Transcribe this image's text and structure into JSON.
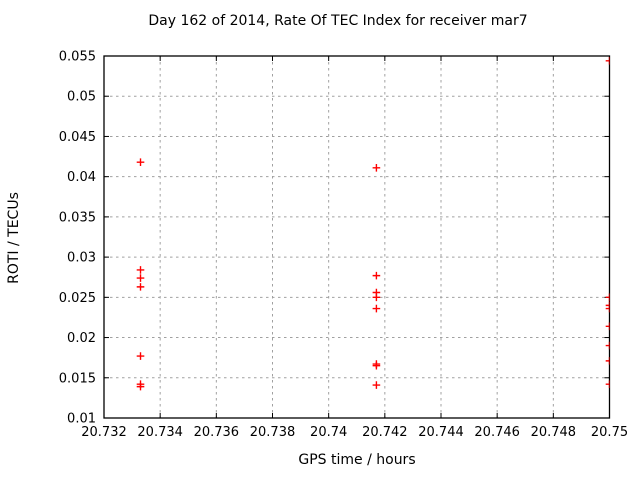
{
  "chart_data": {
    "type": "scatter",
    "title": "Day 162 of 2014, Rate Of TEC Index for receiver mar7",
    "xlabel": "GPS time / hours",
    "ylabel": "ROTI / TECUs",
    "xlim": [
      20.732,
      20.75
    ],
    "ylim": [
      0.01,
      0.055
    ],
    "xtick_values": [
      20.732,
      20.734,
      20.736,
      20.738,
      20.74,
      20.742,
      20.744,
      20.746,
      20.748,
      20.75
    ],
    "xtick_labels": [
      "20.732",
      "20.734",
      "20.736",
      "20.738",
      "20.74",
      "20.742",
      "20.744",
      "20.746",
      "20.748",
      "20.75"
    ],
    "ytick_values": [
      0.01,
      0.015,
      0.02,
      0.025,
      0.03,
      0.035,
      0.04,
      0.045,
      0.05,
      0.055
    ],
    "ytick_labels": [
      "0.01",
      "0.015",
      "0.02",
      "0.025",
      "0.03",
      "0.035",
      "0.04",
      "0.045",
      "0.05",
      "0.055"
    ],
    "grid": true,
    "legend_position": "none",
    "marker": "plus",
    "marker_color": "#ff0000",
    "grid_color": "#a0a0a0",
    "border_color": "#000000",
    "series": [
      {
        "name": "ROTI",
        "points": [
          [
            20.7333,
            0.0418
          ],
          [
            20.7333,
            0.0284
          ],
          [
            20.7333,
            0.0274
          ],
          [
            20.7333,
            0.0263
          ],
          [
            20.7333,
            0.0177
          ],
          [
            20.7333,
            0.0142
          ],
          [
            20.7333,
            0.0139
          ],
          [
            20.7417,
            0.0411
          ],
          [
            20.7417,
            0.0277
          ],
          [
            20.7417,
            0.0256
          ],
          [
            20.7417,
            0.025
          ],
          [
            20.7417,
            0.0236
          ],
          [
            20.7417,
            0.0167
          ],
          [
            20.7417,
            0.0165
          ],
          [
            20.7417,
            0.0141
          ],
          [
            20.75,
            0.0544
          ],
          [
            20.75,
            0.025
          ],
          [
            20.75,
            0.024
          ],
          [
            20.75,
            0.0236
          ],
          [
            20.75,
            0.0214
          ],
          [
            20.75,
            0.019
          ],
          [
            20.75,
            0.0171
          ],
          [
            20.75,
            0.0142
          ]
        ]
      }
    ]
  }
}
